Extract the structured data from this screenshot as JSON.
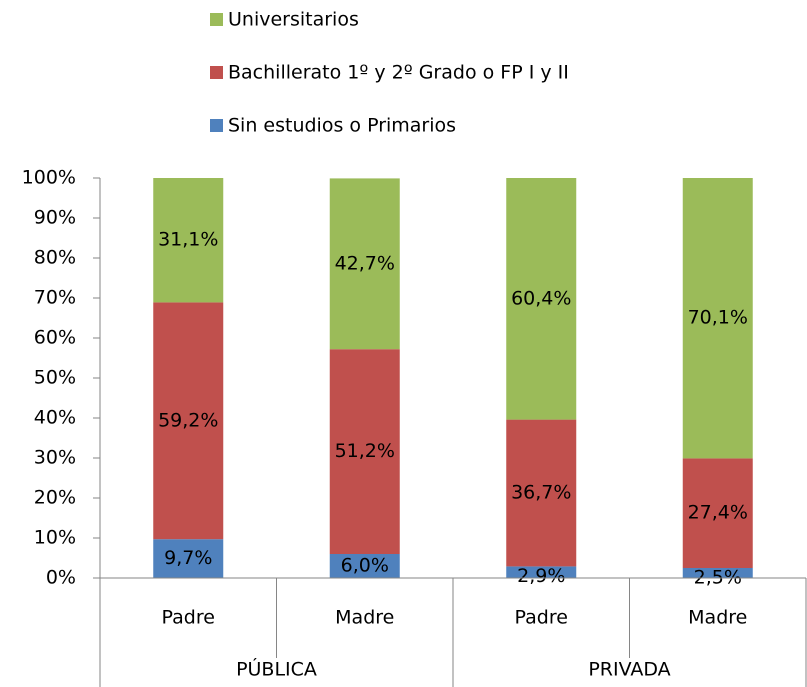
{
  "chart_data": {
    "type": "stacked_bar_100",
    "categories": [
      "Padre",
      "Madre",
      "Padre",
      "Madre"
    ],
    "groups": [
      "PÚBLICA",
      "PRIVADA"
    ],
    "series": [
      {
        "name": "Sin estudios o Primarios",
        "color": "#4f81bd",
        "values": [
          9.7,
          6.0,
          2.9,
          2.5
        ],
        "value_labels": [
          "9,7%",
          "6,0%",
          "2,9%",
          "2,5%"
        ]
      },
      {
        "name": "Bachillerato 1º y 2º Grado o FP I y II",
        "color": "#c0504d",
        "values": [
          59.2,
          51.2,
          36.7,
          27.4
        ],
        "value_labels": [
          "59,2%",
          "51,2%",
          "36,7%",
          "27,4%"
        ]
      },
      {
        "name": "Universitarios",
        "color": "#9bbb59",
        "values": [
          31.1,
          42.7,
          60.4,
          70.1
        ],
        "value_labels": [
          "31,1%",
          "42,7%",
          "60,4%",
          "70,1%"
        ]
      }
    ],
    "ylim": [
      0,
      100
    ],
    "yticks": [
      {
        "value": 0,
        "label": "0%"
      },
      {
        "value": 10,
        "label": "10%"
      },
      {
        "value": 20,
        "label": "20%"
      },
      {
        "value": 30,
        "label": "30%"
      },
      {
        "value": 40,
        "label": "40%"
      },
      {
        "value": 50,
        "label": "50%"
      },
      {
        "value": 60,
        "label": "60%"
      },
      {
        "value": 70,
        "label": "70%"
      },
      {
        "value": 80,
        "label": "80%"
      },
      {
        "value": 90,
        "label": "90%"
      },
      {
        "value": 100,
        "label": "100%"
      }
    ],
    "grid": false
  }
}
